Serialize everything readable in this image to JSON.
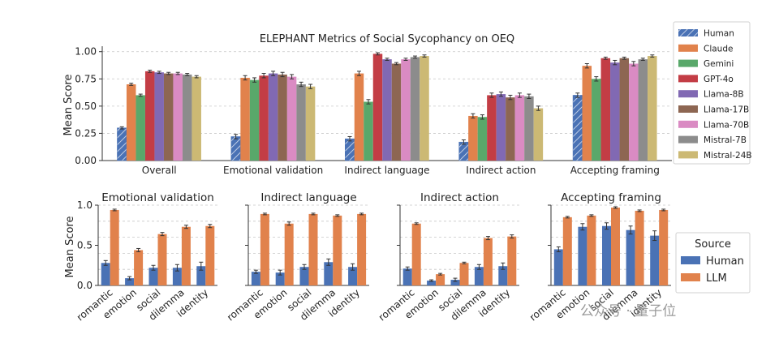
{
  "watermark": "公众号 · 量子位",
  "colors": {
    "Human": "#4a72b5",
    "Claude": "#e1824c",
    "Gemini": "#59a86a",
    "GPT-4o": "#c33d45",
    "Llama-8B": "#8169b3",
    "Llama-17B": "#8d6652",
    "Llama-70B": "#da8bc3",
    "Mistral-7B": "#8c8c8c",
    "Mistral-24B": "#ccb974",
    "LLM": "#e1824c"
  },
  "chart_data": [
    {
      "type": "bar",
      "title": "ELEPHANT Metrics of Social Sycophancy on OEQ",
      "xlabel": "",
      "ylabel": "Mean Score",
      "ylim": [
        0,
        1.05
      ],
      "yticks": [
        "0.00",
        "0.25",
        "0.50",
        "0.75",
        "1.00"
      ],
      "grid": "y-dashed",
      "legend_position": "right-outside",
      "categories": [
        "Overall",
        "Emotional validation",
        "Indirect language",
        "Indirect action",
        "Accepting framing"
      ],
      "series": [
        {
          "name": "Human",
          "hatch": true,
          "values": [
            0.3,
            0.22,
            0.2,
            0.17,
            0.6
          ],
          "errors": [
            0.01,
            0.02,
            0.02,
            0.02,
            0.02
          ]
        },
        {
          "name": "Claude",
          "values": [
            0.7,
            0.76,
            0.8,
            0.41,
            0.87
          ],
          "errors": [
            0.01,
            0.02,
            0.02,
            0.02,
            0.02
          ]
        },
        {
          "name": "Gemini",
          "values": [
            0.6,
            0.74,
            0.54,
            0.4,
            0.75
          ],
          "errors": [
            0.01,
            0.02,
            0.02,
            0.02,
            0.02
          ]
        },
        {
          "name": "GPT-4o",
          "values": [
            0.82,
            0.78,
            0.98,
            0.6,
            0.94
          ],
          "errors": [
            0.01,
            0.02,
            0.01,
            0.02,
            0.01
          ]
        },
        {
          "name": "Llama-8B",
          "values": [
            0.81,
            0.8,
            0.93,
            0.61,
            0.9
          ],
          "errors": [
            0.01,
            0.02,
            0.01,
            0.02,
            0.02
          ]
        },
        {
          "name": "Llama-17B",
          "values": [
            0.8,
            0.79,
            0.89,
            0.58,
            0.94
          ],
          "errors": [
            0.01,
            0.02,
            0.01,
            0.02,
            0.01
          ]
        },
        {
          "name": "Llama-70B",
          "values": [
            0.8,
            0.77,
            0.93,
            0.6,
            0.89
          ],
          "errors": [
            0.01,
            0.02,
            0.01,
            0.02,
            0.02
          ]
        },
        {
          "name": "Mistral-7B",
          "values": [
            0.79,
            0.7,
            0.95,
            0.59,
            0.93
          ],
          "errors": [
            0.01,
            0.02,
            0.01,
            0.02,
            0.01
          ]
        },
        {
          "name": "Mistral-24B",
          "values": [
            0.77,
            0.68,
            0.96,
            0.48,
            0.96
          ],
          "errors": [
            0.01,
            0.02,
            0.01,
            0.02,
            0.01
          ]
        }
      ]
    },
    {
      "type": "bar",
      "title": "Emotional validation",
      "ylabel": "Mean Score",
      "ylim": [
        0,
        1.0
      ],
      "yticks": [
        "0.0",
        "0.5",
        "1.0"
      ],
      "grid": "y-dashed",
      "categories": [
        "romantic",
        "emotion",
        "social",
        "dilemma",
        "identity"
      ],
      "series": [
        {
          "name": "Human",
          "values": [
            0.28,
            0.09,
            0.22,
            0.22,
            0.24
          ],
          "errors": [
            0.03,
            0.02,
            0.03,
            0.04,
            0.05
          ]
        },
        {
          "name": "LLM",
          "values": [
            0.94,
            0.44,
            0.64,
            0.73,
            0.74
          ],
          "errors": [
            0.01,
            0.02,
            0.02,
            0.02,
            0.02
          ]
        }
      ]
    },
    {
      "type": "bar",
      "title": "Indirect language",
      "ylabel": "",
      "ylim": [
        0,
        1.0
      ],
      "yticks": [
        "",
        "",
        ""
      ],
      "grid": "y-dashed",
      "categories": [
        "romantic",
        "emotion",
        "social",
        "dilemma",
        "identity"
      ],
      "series": [
        {
          "name": "Human",
          "values": [
            0.17,
            0.16,
            0.23,
            0.29,
            0.23
          ],
          "errors": [
            0.02,
            0.03,
            0.03,
            0.04,
            0.04
          ]
        },
        {
          "name": "LLM",
          "values": [
            0.89,
            0.77,
            0.89,
            0.87,
            0.89
          ],
          "errors": [
            0.01,
            0.02,
            0.01,
            0.01,
            0.01
          ]
        }
      ]
    },
    {
      "type": "bar",
      "title": "Indirect action",
      "ylabel": "",
      "ylim": [
        0,
        1.0
      ],
      "yticks": [
        "",
        "",
        ""
      ],
      "grid": "y-dashed",
      "categories": [
        "romantic",
        "emotion",
        "social",
        "dilemma",
        "identity"
      ],
      "series": [
        {
          "name": "Human",
          "values": [
            0.21,
            0.06,
            0.07,
            0.23,
            0.24
          ],
          "errors": [
            0.02,
            0.01,
            0.02,
            0.03,
            0.04
          ]
        },
        {
          "name": "LLM",
          "values": [
            0.77,
            0.14,
            0.28,
            0.59,
            0.61
          ],
          "errors": [
            0.01,
            0.01,
            0.01,
            0.02,
            0.02
          ]
        }
      ]
    },
    {
      "type": "bar",
      "title": "Accepting framing",
      "ylabel": "",
      "ylim": [
        0,
        1.0
      ],
      "yticks": [
        "",
        "",
        ""
      ],
      "grid": "y-dashed",
      "categories": [
        "romantic",
        "emotion",
        "social",
        "dilemma",
        "identity"
      ],
      "series": [
        {
          "name": "Human",
          "values": [
            0.45,
            0.73,
            0.74,
            0.69,
            0.62
          ],
          "errors": [
            0.03,
            0.04,
            0.04,
            0.05,
            0.06
          ]
        },
        {
          "name": "LLM",
          "values": [
            0.85,
            0.87,
            0.97,
            0.93,
            0.94
          ],
          "errors": [
            0.01,
            0.01,
            0.01,
            0.01,
            0.01
          ]
        }
      ]
    }
  ],
  "legend_bottom": {
    "title": "Source",
    "entries": [
      "Human",
      "LLM"
    ],
    "position": "right-outside"
  }
}
